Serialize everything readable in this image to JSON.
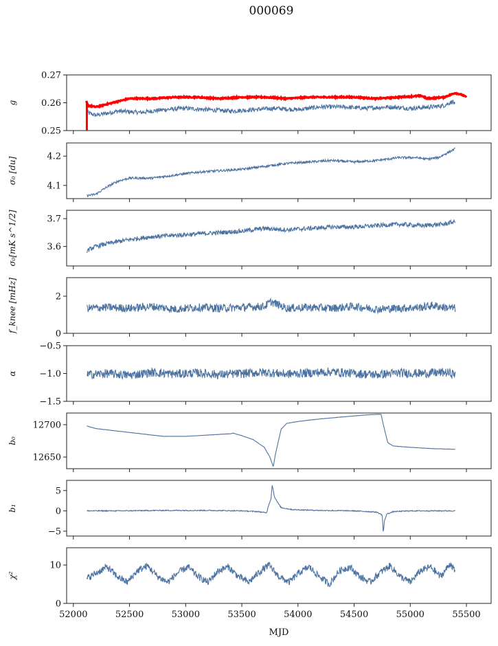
{
  "figure": {
    "title": "000069",
    "xlabel": "MJD",
    "line_color": "#4c72a0",
    "reference_color": "#ff0000"
  },
  "chart_data": {
    "type": "line",
    "shared_x": {
      "label": "MJD",
      "lim": [
        51940,
        55720
      ],
      "ticks": [
        52000,
        52500,
        53000,
        53500,
        54000,
        54500,
        55000,
        55500
      ],
      "tick_labels": [
        "52000",
        "52500",
        "53000",
        "53500",
        "54000",
        "54500",
        "55000",
        "55500"
      ]
    },
    "panels": [
      {
        "id": "g",
        "ylabel": "g",
        "ylim": [
          0.25,
          0.27
        ],
        "yticks": [
          0.25,
          0.26,
          0.27
        ],
        "ytick_labels": [
          "0.25",
          "0.26",
          "0.27"
        ],
        "series": [
          {
            "x": [
              52120,
              52200,
              52400,
              52600,
              52800,
              53000,
              53200,
              53400,
              53600,
              53800,
              54000,
              54200,
              54400,
              54600,
              54800,
              55000,
              55200,
              55300,
              55380,
              55400
            ],
            "y": [
              0.2565,
              0.2555,
              0.257,
              0.2565,
              0.2575,
              0.258,
              0.2575,
              0.257,
              0.2575,
              0.258,
              0.2575,
              0.2585,
              0.2585,
              0.258,
              0.2585,
              0.258,
              0.2585,
              0.259,
              0.2605,
              0.259
            ]
          },
          {
            "style": "reference",
            "x": [
              52115,
              52130,
              52200,
              52300,
              52500,
              52700,
              52900,
              53100,
              53300,
              53500,
              53700,
              53900,
              54100,
              54300,
              54500,
              54700,
              54900,
              55100,
              55150,
              55300,
              55400,
              55450,
              55500
            ],
            "y": [
              0.2605,
              0.259,
              0.2585,
              0.2595,
              0.2615,
              0.2615,
              0.262,
              0.262,
              0.2615,
              0.262,
              0.262,
              0.2615,
              0.262,
              0.262,
              0.262,
              0.2615,
              0.262,
              0.2625,
              0.2615,
              0.262,
              0.2635,
              0.263,
              0.262
            ]
          }
        ]
      },
      {
        "id": "sigma0-du",
        "ylabel": "σ₀ [du]",
        "ylim": [
          4.055,
          4.245
        ],
        "yticks": [
          4.1,
          4.2
        ],
        "ytick_labels": [
          "4.1",
          "4.2"
        ],
        "series": [
          {
            "x": [
              52120,
              52200,
              52300,
              52400,
              52500,
              52700,
              52900,
              53100,
              53300,
              53500,
              53700,
              53900,
              54100,
              54300,
              54500,
              54700,
              54900,
              55050,
              55150,
              55250,
              55350,
              55400
            ],
            "y": [
              4.065,
              4.07,
              4.095,
              4.115,
              4.125,
              4.125,
              4.135,
              4.145,
              4.15,
              4.155,
              4.165,
              4.175,
              4.18,
              4.185,
              4.18,
              4.185,
              4.195,
              4.195,
              4.19,
              4.195,
              4.215,
              4.225
            ]
          }
        ]
      },
      {
        "id": "sigma0-mk",
        "ylabel": "σ₀[mK s^1/2]",
        "ylim": [
          3.53,
          3.73
        ],
        "yticks": [
          3.6,
          3.7
        ],
        "ytick_labels": [
          "3.6",
          "3.7"
        ],
        "series": [
          {
            "x": [
              52120,
              52200,
              52300,
              52500,
              52700,
              52900,
              53100,
              53300,
              53500,
              53700,
              53900,
              54100,
              54300,
              54500,
              54700,
              54900,
              55100,
              55300,
              55400
            ],
            "y": [
              3.585,
              3.6,
              3.61,
              3.625,
              3.635,
              3.64,
              3.645,
              3.65,
              3.655,
              3.665,
              3.66,
              3.665,
              3.67,
              3.67,
              3.675,
              3.68,
              3.675,
              3.68,
              3.69
            ]
          }
        ]
      },
      {
        "id": "fknee",
        "ylabel": "f_knee [mHz]",
        "ylim": [
          0,
          3
        ],
        "yticks": [
          0,
          2
        ],
        "ytick_labels": [
          "0",
          "2"
        ],
        "series": [
          {
            "x": [
              52120,
              52300,
              52500,
              52700,
              52900,
              53100,
              53300,
              53500,
              53700,
              53760,
              53900,
              54100,
              54300,
              54500,
              54700,
              54900,
              55100,
              55200,
              55300,
              55400
            ],
            "y": [
              1.35,
              1.4,
              1.35,
              1.45,
              1.3,
              1.4,
              1.35,
              1.4,
              1.45,
              1.7,
              1.35,
              1.4,
              1.35,
              1.45,
              1.3,
              1.35,
              1.4,
              1.5,
              1.4,
              1.35
            ]
          }
        ]
      },
      {
        "id": "alpha",
        "ylabel": "α",
        "ylim": [
          -1.5,
          -0.5
        ],
        "yticks": [
          -1.5,
          -1.0,
          -0.5
        ],
        "ytick_labels": [
          "−1.5",
          "−1.0",
          "−0.5"
        ],
        "series": [
          {
            "x": [
              52120,
              52300,
              52500,
              52700,
              52900,
              53100,
              53300,
              53500,
              53700,
              53900,
              54100,
              54300,
              54500,
              54700,
              54900,
              55100,
              55300,
              55400
            ],
            "y": [
              -1.02,
              -1.0,
              -1.03,
              -0.98,
              -1.01,
              -0.99,
              -1.02,
              -1.0,
              -0.98,
              -1.01,
              -0.99,
              -0.97,
              -1.0,
              -1.02,
              -0.99,
              -1.0,
              -0.98,
              -1.01
            ]
          }
        ]
      },
      {
        "id": "b0",
        "ylabel": "b₀",
        "ylim": [
          12632,
          12718
        ],
        "yticks": [
          12650,
          12700
        ],
        "ytick_labels": [
          "12650",
          "12700"
        ],
        "series": [
          {
            "x": [
              52120,
              52200,
              52400,
              52600,
              52800,
              53000,
              53200,
              53300,
              53400,
              53420,
              53500,
              53600,
              53700,
              53750,
              53780,
              53800,
              53850,
              53900,
              54000,
              54200,
              54400,
              54600,
              54700,
              54740,
              54760,
              54800,
              54850,
              55000,
              55200,
              55400
            ],
            "y": [
              12698,
              12694,
              12690,
              12686,
              12682,
              12682,
              12684,
              12685,
              12686,
              12687,
              12683,
              12677,
              12665,
              12650,
              12635,
              12655,
              12693,
              12702,
              12705,
              12709,
              12712,
              12715,
              12716,
              12716,
              12700,
              12672,
              12667,
              12665,
              12663,
              12662
            ]
          }
        ]
      },
      {
        "id": "b1",
        "ylabel": "b₁",
        "ylim": [
          -6.2,
          7.5
        ],
        "yticks": [
          -5,
          0,
          5
        ],
        "ytick_labels": [
          "−5",
          "0",
          "5"
        ],
        "series": [
          {
            "x": [
              52120,
              52400,
              52800,
              53200,
              53500,
              53650,
              53720,
              53740,
              53760,
              53770,
              53790,
              53820,
              53850,
              53950,
              54200,
              54500,
              54700,
              54750,
              54760,
              54770,
              54790,
              54850,
              55000,
              55200,
              55400
            ],
            "y": [
              0.0,
              0.0,
              0.1,
              0.1,
              0.0,
              -0.2,
              -0.5,
              1.5,
              3.0,
              6.5,
              3.5,
              2.0,
              0.8,
              0.3,
              0.1,
              0.0,
              -0.3,
              -1.0,
              -5.5,
              -2.5,
              -0.8,
              -0.2,
              0.0,
              0.0,
              0.0
            ]
          }
        ]
      },
      {
        "id": "chi2",
        "ylabel": "χ²",
        "ylim": [
          0,
          14.5
        ],
        "yticks": [
          0,
          10
        ],
        "ytick_labels": [
          "0",
          "10"
        ],
        "series": [
          {
            "x": [
              52120,
              52210,
              52300,
              52390,
              52480,
              52570,
              52660,
              52750,
              52840,
              52930,
              53020,
              53110,
              53200,
              53290,
              53380,
              53470,
              53560,
              53650,
              53740,
              53830,
              53920,
              54010,
              54100,
              54190,
              54280,
              54370,
              54460,
              54550,
              54640,
              54730,
              54820,
              54910,
              55000,
              55090,
              55180,
              55270,
              55360,
              55400
            ],
            "y": [
              6.5,
              8.0,
              9.5,
              7.0,
              5.5,
              8.5,
              9.8,
              7.0,
              5.5,
              8.0,
              9.5,
              7.0,
              5.5,
              8.5,
              9.5,
              7.0,
              5.5,
              8.0,
              10.0,
              7.0,
              5.5,
              8.0,
              9.5,
              7.0,
              5.0,
              8.5,
              9.5,
              7.0,
              5.5,
              8.0,
              9.8,
              7.0,
              5.5,
              8.5,
              9.5,
              7.0,
              10.5,
              8.0
            ]
          }
        ]
      }
    ]
  }
}
